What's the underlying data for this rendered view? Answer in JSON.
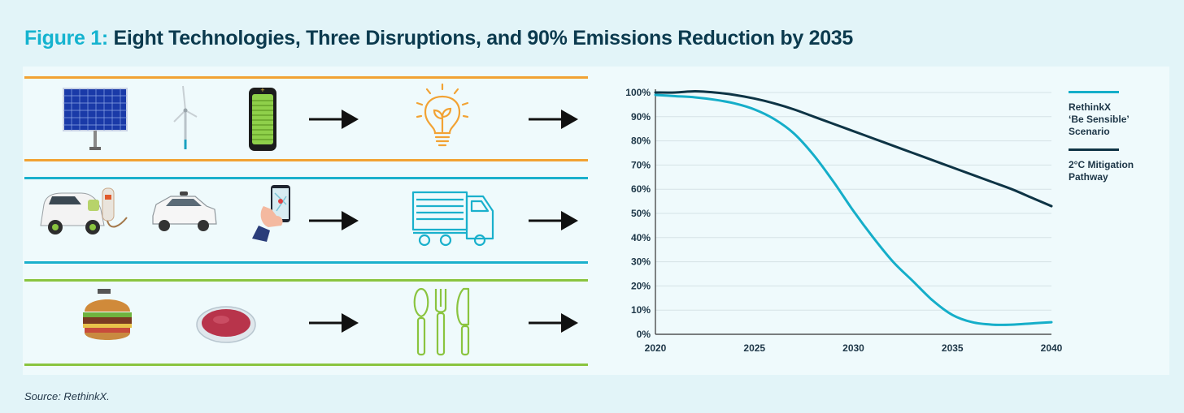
{
  "title": {
    "prefix": "Figure 1:",
    "text": "Eight Technologies, Three Disruptions, and 90% Emissions Reduction by 2035"
  },
  "source": "Source: RethinkX.",
  "colors": {
    "energy": "#f2a233",
    "transport": "#1ab0cc",
    "food": "#8ac43f",
    "scenario": "#15aec9",
    "pathway": "#0e3445",
    "title_accent": "#15b3cf"
  },
  "disruption_rows": [
    {
      "sector": "energy",
      "technologies": [
        "solar-panel-icon",
        "wind-turbine-icon",
        "battery-icon"
      ],
      "disruption": "lightbulb-icon"
    },
    {
      "sector": "transport",
      "technologies": [
        "electric-car-icon",
        "autonomous-car-icon",
        "ride-hailing-phone-icon"
      ],
      "disruption": "truck-icon"
    },
    {
      "sector": "food",
      "technologies": [
        "plant-based-burger-icon",
        "cultured-meat-icon"
      ],
      "disruption": "cutlery-icon"
    }
  ],
  "chart_data": {
    "type": "line",
    "title": "",
    "xlabel": "",
    "ylabel": "",
    "x_ticks": [
      "2020",
      "2025",
      "2030",
      "2035",
      "2040"
    ],
    "y_ticks": [
      "0%",
      "10%",
      "20%",
      "30%",
      "40%",
      "50%",
      "60%",
      "70%",
      "80%",
      "90%",
      "100%"
    ],
    "xlim": [
      2020,
      2040
    ],
    "ylim": [
      0,
      100
    ],
    "grid": true,
    "legend_position": "right",
    "series": [
      {
        "name": "RethinkX 'Be Sensible' Scenario",
        "legend_label": "RethinkX\n‘Be Sensible’\nScenario",
        "x": [
          2020,
          2021,
          2022,
          2023,
          2024,
          2025,
          2026,
          2027,
          2028,
          2029,
          2030,
          2031,
          2032,
          2033,
          2034,
          2035,
          2036,
          2037,
          2038,
          2039,
          2040
        ],
        "y": [
          99,
          98.5,
          98,
          97,
          95.5,
          93,
          89,
          83,
          74,
          63,
          51,
          40,
          30,
          22,
          14,
          8,
          5,
          4,
          4,
          4.5,
          5
        ]
      },
      {
        "name": "2°C Mitigation Pathway",
        "legend_label": "2°C Mitigation\nPathway",
        "x": [
          2020,
          2021,
          2022,
          2023,
          2024,
          2025,
          2026,
          2027,
          2028,
          2029,
          2030,
          2031,
          2032,
          2033,
          2034,
          2035,
          2036,
          2037,
          2038,
          2039,
          2040
        ],
        "y": [
          100,
          100,
          100.5,
          100,
          99,
          97.5,
          95.5,
          93,
          90,
          87,
          84,
          81,
          78,
          75,
          72,
          69,
          66,
          63,
          60,
          56.5,
          53
        ]
      }
    ]
  }
}
